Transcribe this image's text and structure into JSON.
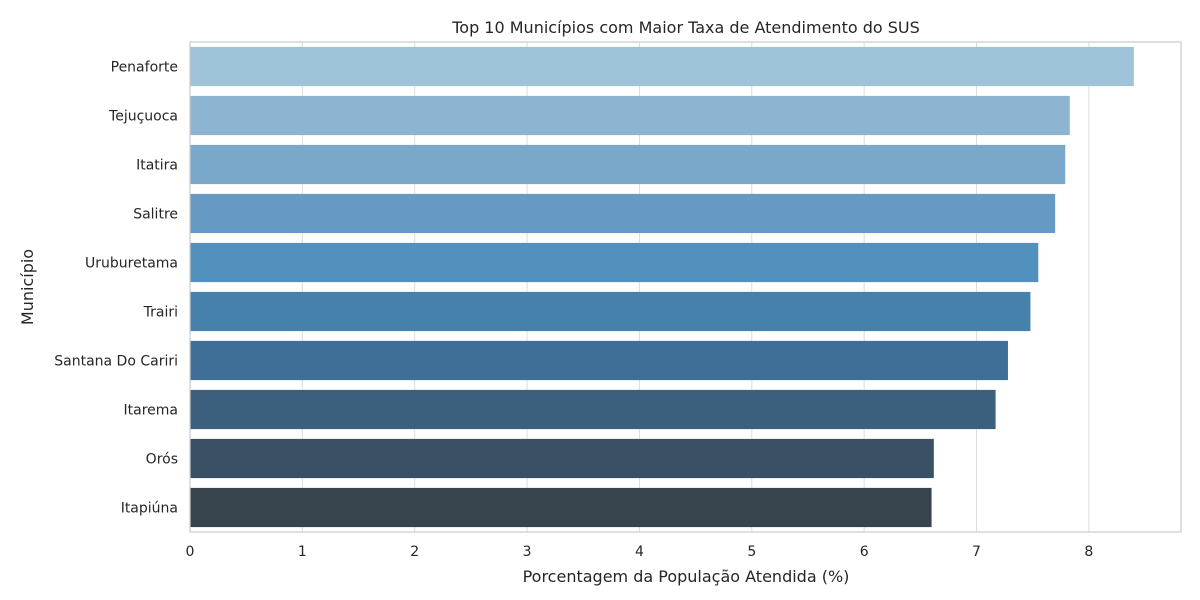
{
  "chart_data": {
    "type": "bar",
    "orientation": "horizontal",
    "title": "Top 10 Municípios com Maior Taxa de Atendimento do SUS",
    "xlabel": "Porcentagem da População Atendida (%)",
    "ylabel": "Município",
    "categories": [
      "Penaforte",
      "Tejuçuoca",
      "Itatira",
      "Salitre",
      "Uruburetama",
      "Trairi",
      "Santana Do Cariri",
      "Itarema",
      "Orós",
      "Itapiúna"
    ],
    "values": [
      8.4,
      7.83,
      7.79,
      7.7,
      7.55,
      7.48,
      7.28,
      7.17,
      6.62,
      6.6
    ],
    "xticks": [
      0,
      1,
      2,
      3,
      4,
      5,
      6,
      7,
      8
    ],
    "xlim": [
      0,
      8.82
    ],
    "grid": true,
    "colors": [
      "#9fc3d8",
      "#8db4d0",
      "#7aa8cb",
      "#6699c3",
      "#5290be",
      "#4581ab",
      "#3f6f96",
      "#3c5f7e",
      "#3a5064",
      "#37444d"
    ]
  }
}
